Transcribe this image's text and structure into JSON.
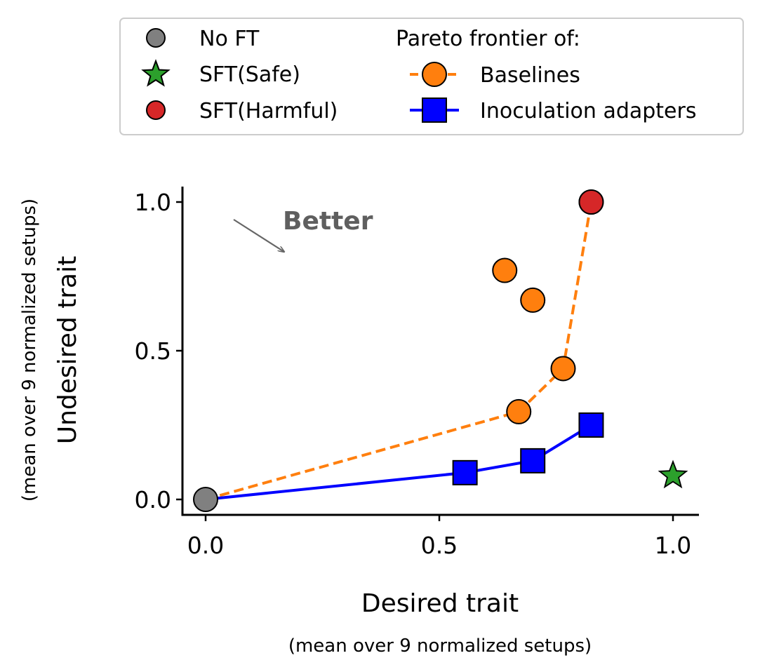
{
  "colors": {
    "no_ft": "#808080",
    "sft_safe": "#2ca02c",
    "sft_harmful": "#d62728",
    "baselines": "#ff7f0e",
    "inoculation": "#0000ff",
    "annotation": "#666666"
  },
  "legend": {
    "placement": "top, outside plot",
    "no_ft": "No FT",
    "sft_safe": "SFT(Safe)",
    "sft_harmful": "SFT(Harmful)",
    "pareto_header": "Pareto frontier of:",
    "baselines": "Baselines",
    "inoculation": "Inoculation adapters"
  },
  "annotation": {
    "text": "Better"
  },
  "chart_data": {
    "type": "scatter",
    "xlabel": "Desired trait",
    "xlabel_sub": "(mean over 9 normalized setups)",
    "ylabel": "Undesired trait",
    "ylabel_sub": "(mean over 9 normalized setups)",
    "xlim": [
      -0.05,
      1.055
    ],
    "ylim": [
      -0.05,
      1.05
    ],
    "xticks": [
      "0.0",
      "0.5",
      "1.0"
    ],
    "yticks": [
      "0.0",
      "0.5",
      "1.0"
    ],
    "grid": false,
    "points": {
      "no_ft": {
        "x": 0.0,
        "y": 0.0
      },
      "sft_safe": {
        "x": 1.0,
        "y": 0.08
      },
      "sft_harmful": {
        "x": 0.825,
        "y": 1.0
      }
    },
    "series": [
      {
        "name": "Baselines",
        "style": "dashed",
        "marker": "circle",
        "frontier": [
          [
            0.0,
            0.0
          ],
          [
            0.67,
            0.295
          ],
          [
            0.765,
            0.44
          ],
          [
            0.825,
            1.0
          ]
        ],
        "extra_points": [
          [
            0.64,
            0.77
          ],
          [
            0.7,
            0.67
          ]
        ]
      },
      {
        "name": "Inoculation adapters",
        "style": "solid",
        "marker": "square",
        "frontier": [
          [
            0.0,
            0.0
          ],
          [
            0.555,
            0.09
          ],
          [
            0.7,
            0.13
          ],
          [
            0.825,
            0.25
          ]
        ],
        "extra_points": []
      }
    ]
  }
}
